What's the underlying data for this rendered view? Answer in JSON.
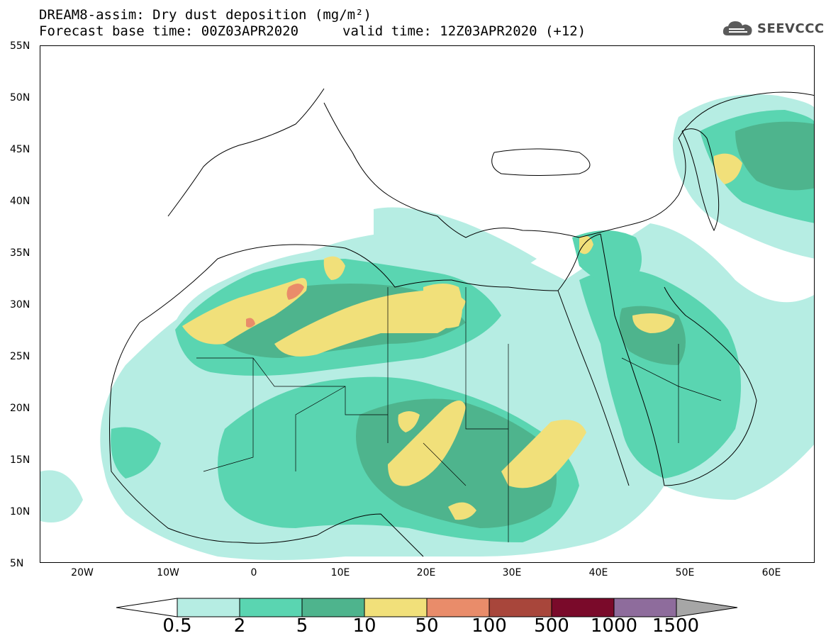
{
  "header": {
    "title_line1": "DREAM8-assim: Dry dust deposition (mg/m²)",
    "title_line2_left": "Forecast base time: 00Z03APR2020",
    "title_line2_right": "valid time: 12Z03APR2020 (+12)"
  },
  "logo": {
    "text": "SEEVCCC",
    "icon": "cloud-logo-icon"
  },
  "map": {
    "lat_labels": [
      "55N",
      "50N",
      "45N",
      "40N",
      "35N",
      "30N",
      "25N",
      "20N",
      "15N",
      "10N",
      "5N"
    ],
    "lon_labels": [
      "20W",
      "10W",
      "0",
      "10E",
      "20E",
      "30E",
      "40E",
      "50E",
      "60E"
    ]
  },
  "colorbar": {
    "labels": [
      "0.5",
      "2",
      "5",
      "10",
      "50",
      "100",
      "500",
      "1000",
      "1500"
    ],
    "colors": {
      "lt_0_5": "#ffffff",
      "c0": "#b6ede3",
      "c1": "#5ad5b1",
      "c2": "#4eb48d",
      "c3": "#f1e07a",
      "c4": "#e98c6a",
      "c5": "#a8463b",
      "c6": "#7a0a2a",
      "c7": "#8e6c9c",
      "gt_1500": "#a6a6a6"
    }
  }
}
